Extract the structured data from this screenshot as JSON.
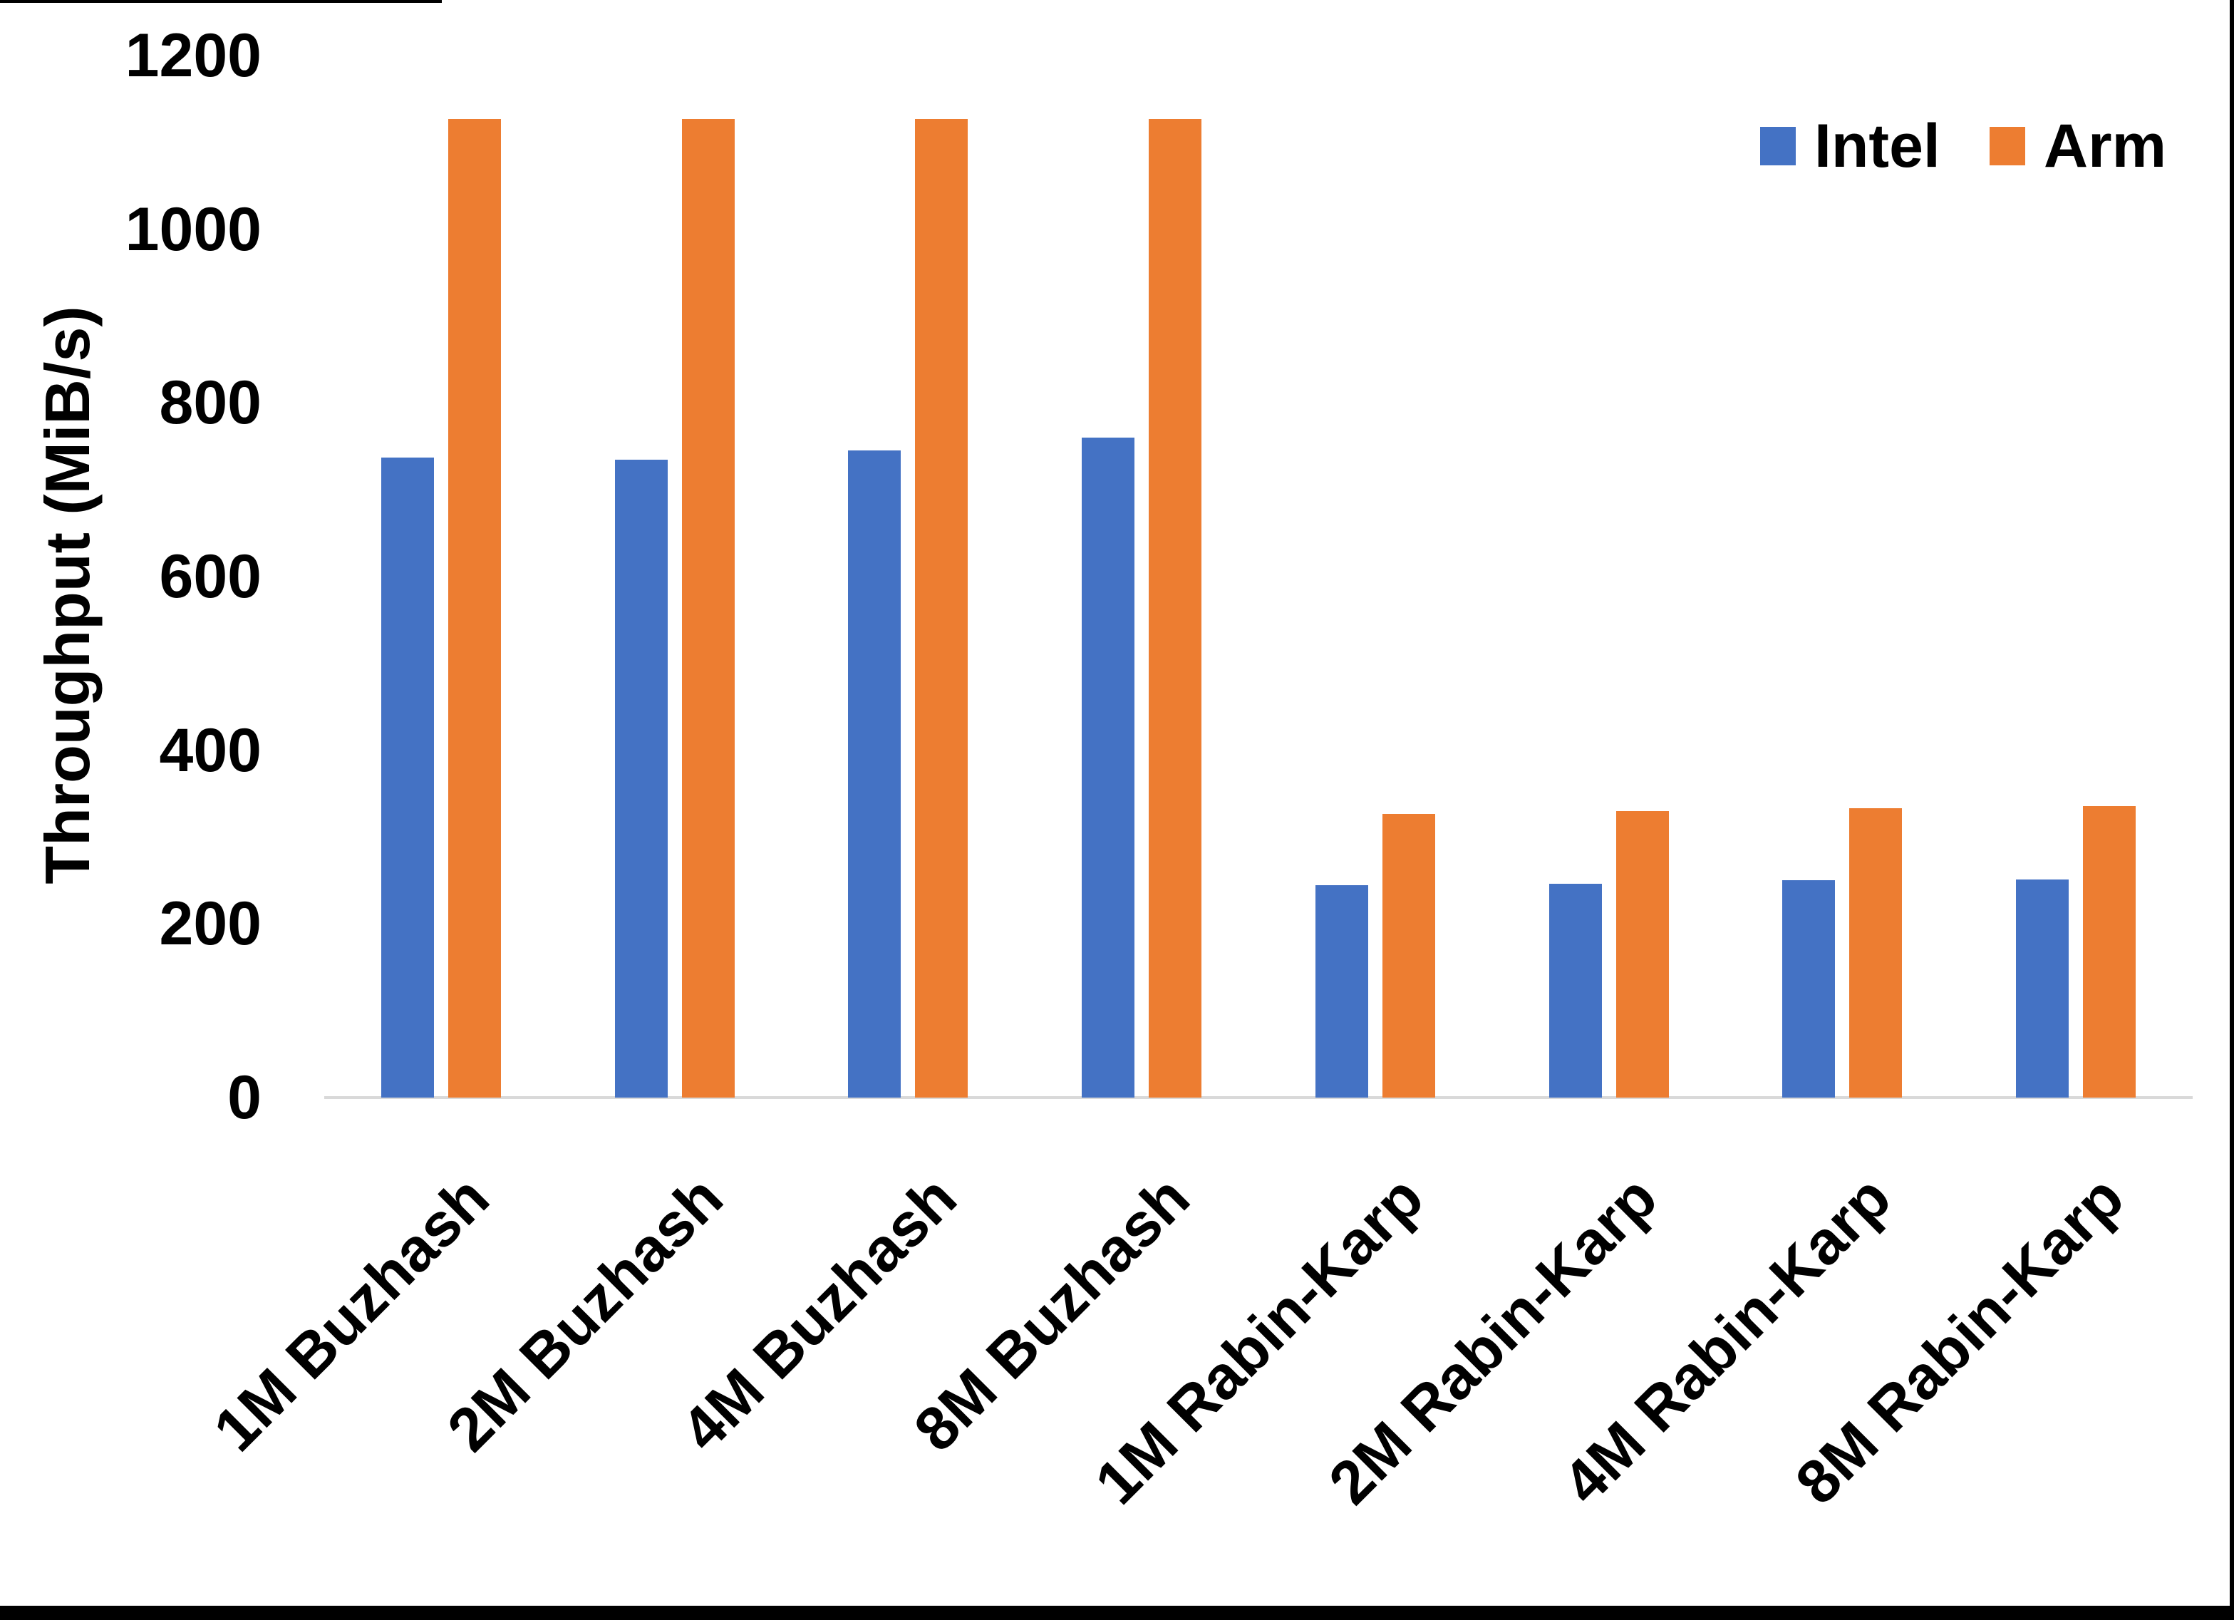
{
  "figure": {
    "background": "#FFFFFF",
    "frame_color": "#000000",
    "axis_line_color": "#D9D9D9",
    "text_color": "#000000"
  },
  "chart_data": {
    "type": "bar",
    "title": "",
    "xlabel": "",
    "ylabel": "Throughput (MiB/s)",
    "ylim": [
      0,
      1200
    ],
    "yticks": [
      0,
      200,
      400,
      600,
      800,
      1000,
      1200
    ],
    "grid": false,
    "legend_position": "top-right",
    "categories": [
      "1M Buzhash",
      "2M Buzhash",
      "4M Buzhash",
      "8M Buzhash",
      "1M Rabin-Karp",
      "2M Rabin-Karp",
      "4M Rabin-Karp",
      "8M Rabin-Karp"
    ],
    "series": [
      {
        "name": "Intel",
        "color": "#4472C4",
        "values": [
          737,
          735,
          745,
          760,
          245,
          246,
          250,
          251
        ]
      },
      {
        "name": "Arm",
        "color": "#ED7D31",
        "values": [
          1127,
          1127,
          1127,
          1127,
          327,
          330,
          333,
          336
        ]
      }
    ]
  }
}
